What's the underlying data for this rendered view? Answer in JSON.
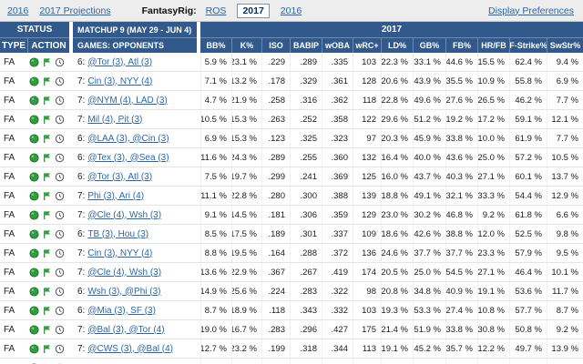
{
  "topbar": {
    "links": [
      "2016",
      "2017 Projections"
    ],
    "brand": "FantasyRig:",
    "tabs": [
      "ROS",
      "2017",
      "2016"
    ],
    "selected_tab": "2017",
    "display_preferences": "Display Preferences"
  },
  "table": {
    "status_header": "STATUS",
    "type_header": "TYPE",
    "action_header": "ACTION",
    "matchup_header": "MATCHUP 9 (MAY 29 - JUN 4)",
    "games_header": "GAMES: OPPONENTS",
    "year_header": "2017",
    "stat_columns": [
      "BB%",
      "K%",
      "ISO",
      "BABIP",
      "wOBA",
      "wRC+",
      "LD%",
      "GB%",
      "FB%",
      "HR/FB",
      "F-Strike%",
      "SwStr%"
    ],
    "action_icons": [
      "add-player-icon",
      "flag-icon",
      "clock-icon"
    ],
    "rows": [
      {
        "type": "FA",
        "count": "6:",
        "opponents": "@Tor (3), Atl (3)",
        "stats": [
          "5.9 %",
          "23.1 %",
          ".229",
          ".289",
          ".335",
          "103",
          "22.3 %",
          "33.1 %",
          "44.6 %",
          "15.5 %",
          "62.4 %",
          "9.4 %"
        ]
      },
      {
        "type": "FA",
        "count": "7:",
        "opponents": "Cin (3), NYY (4)",
        "stats": [
          "7.1 %",
          "13.2 %",
          ".178",
          ".329",
          ".361",
          "128",
          "20.6 %",
          "43.9 %",
          "35.5 %",
          "10.9 %",
          "55.8 %",
          "6.9 %"
        ]
      },
      {
        "type": "FA",
        "count": "7:",
        "opponents": "@NYM (4), LAD (3)",
        "stats": [
          "4.7 %",
          "21.9 %",
          ".258",
          ".316",
          ".362",
          "118",
          "22.8 %",
          "49.6 %",
          "27.6 %",
          "26.5 %",
          "46.2 %",
          "7.7 %"
        ]
      },
      {
        "type": "FA",
        "count": "7:",
        "opponents": "Mil (4), Pit (3)",
        "stats": [
          "10.5 %",
          "15.3 %",
          ".263",
          ".252",
          ".358",
          "122",
          "29.6 %",
          "51.2 %",
          "19.2 %",
          "17.2 %",
          "59.1 %",
          "12.1 %"
        ]
      },
      {
        "type": "FA",
        "count": "6:",
        "opponents": "@LAA (3), @Cin (3)",
        "stats": [
          "6.9 %",
          "15.3 %",
          ".123",
          ".325",
          ".323",
          "97",
          "20.3 %",
          "45.9 %",
          "33.8 %",
          "10.0 %",
          "61.9 %",
          "7.7 %"
        ]
      },
      {
        "type": "FA",
        "count": "6:",
        "opponents": "@Tex (3), @Sea (3)",
        "stats": [
          "11.6 %",
          "24.3 %",
          ".289",
          ".255",
          ".360",
          "132",
          "16.4 %",
          "40.0 %",
          "43.6 %",
          "25.0 %",
          "57.2 %",
          "10.5 %"
        ]
      },
      {
        "type": "FA",
        "count": "6:",
        "opponents": "@Tor (3), Atl (3)",
        "stats": [
          "7.5 %",
          "19.7 %",
          ".299",
          ".241",
          ".369",
          "125",
          "16.0 %",
          "43.7 %",
          "40.3 %",
          "27.1 %",
          "60.1 %",
          "13.7 %"
        ]
      },
      {
        "type": "FA",
        "count": "7:",
        "opponents": "Phi (3), Ari (4)",
        "stats": [
          "11.1 %",
          "22.8 %",
          ".280",
          ".300",
          ".388",
          "139",
          "18.8 %",
          "49.1 %",
          "32.1 %",
          "33.3 %",
          "54.4 %",
          "12.9 %"
        ]
      },
      {
        "type": "FA",
        "count": "7:",
        "opponents": "@Cle (4), Wsh (3)",
        "stats": [
          "9.1 %",
          "14.5 %",
          ".181",
          ".306",
          ".359",
          "129",
          "23.0 %",
          "30.2 %",
          "46.8 %",
          "9.2 %",
          "61.8 %",
          "6.6 %"
        ]
      },
      {
        "type": "FA",
        "count": "6:",
        "opponents": "TB (3), Hou (3)",
        "stats": [
          "8.5 %",
          "17.5 %",
          ".189",
          ".301",
          ".337",
          "109",
          "18.6 %",
          "42.6 %",
          "38.8 %",
          "12.0 %",
          "52.5 %",
          "9.8 %"
        ]
      },
      {
        "type": "FA",
        "count": "7:",
        "opponents": "Cin (3), NYY (4)",
        "stats": [
          "8.8 %",
          "19.5 %",
          ".164",
          ".288",
          ".372",
          "136",
          "24.6 %",
          "37.7 %",
          "37.7 %",
          "23.3 %",
          "57.9 %",
          "9.5 %"
        ]
      },
      {
        "type": "FA",
        "count": "7:",
        "opponents": "@Cle (4), Wsh (3)",
        "stats": [
          "13.6 %",
          "22.9 %",
          ".367",
          ".267",
          ".419",
          "174",
          "20.5 %",
          "25.0 %",
          "54.5 %",
          "27.1 %",
          "46.4 %",
          "10.1 %"
        ]
      },
      {
        "type": "FA",
        "count": "6:",
        "opponents": "Wsh (3), @Phi (3)",
        "stats": [
          "14.9 %",
          "25.6 %",
          ".224",
          ".283",
          ".322",
          "98",
          "20.8 %",
          "34.8 %",
          "40.9 %",
          "19.1 %",
          "53.6 %",
          "11.7 %"
        ]
      },
      {
        "type": "FA",
        "count": "6:",
        "opponents": "@Mia (3), SF (3)",
        "stats": [
          "8.7 %",
          "18.9 %",
          ".118",
          ".343",
          ".332",
          "103",
          "19.3 %",
          "53.3 %",
          "27.4 %",
          "10.8 %",
          "57.7 %",
          "8.7 %"
        ]
      },
      {
        "type": "FA",
        "count": "7:",
        "opponents": "@Bal (3), @Tor (4)",
        "stats": [
          "19.0 %",
          "16.7 %",
          ".283",
          ".296",
          ".427",
          "175",
          "21.4 %",
          "51.9 %",
          "33.8 %",
          "30.8 %",
          "50.8 %",
          "9.2 %"
        ]
      },
      {
        "type": "FA",
        "count": "7:",
        "opponents": "@CWS (3), @Bal (4)",
        "stats": [
          "12.7 %",
          "23.2 %",
          ".199",
          ".318",
          ".344",
          "113",
          "19.1 %",
          "45.2 %",
          "35.7 %",
          "12.2 %",
          "49.7 %",
          "13.9 %"
        ]
      },
      {
        "type": "FA",
        "count": "",
        "opponents": "",
        "stats": [
          "",
          "",
          "",
          "",
          "",
          "",
          "",
          "",
          "",
          "",
          "",
          ""
        ]
      }
    ]
  },
  "colors": {
    "header_blue": "#31598c",
    "link_blue": "#2a66a5",
    "icon_green": "#2f9e3f"
  }
}
